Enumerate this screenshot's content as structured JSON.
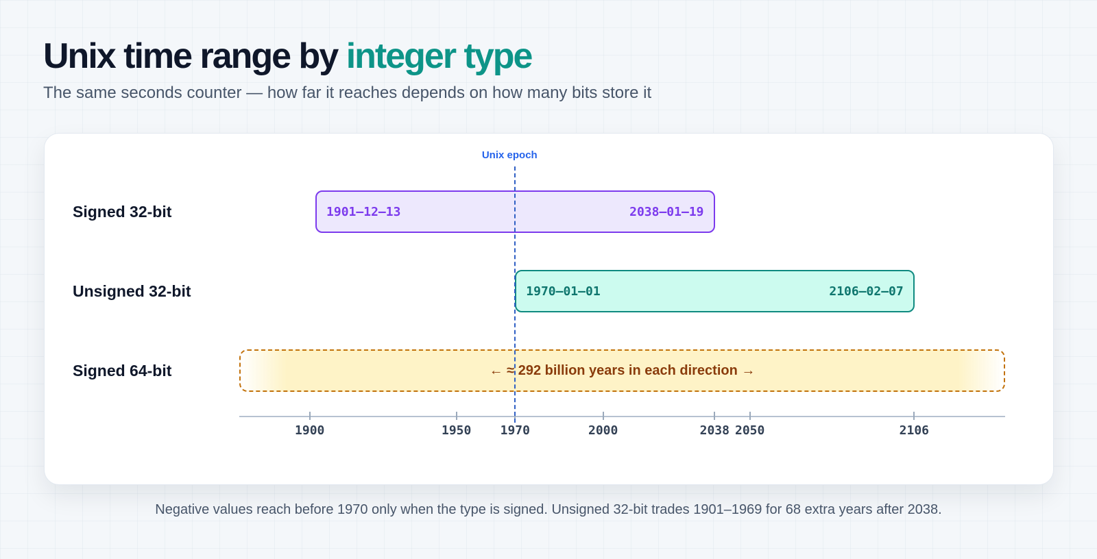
{
  "header": {
    "title_main": "Unix time range by ",
    "title_accent": "integer type",
    "subtitle": "The same seconds counter — how far it reaches depends on how many bits store it"
  },
  "chart_data": {
    "type": "bar",
    "orientation": "horizontal-range",
    "xlim": [
      1876,
      2137
    ],
    "xticks": [
      1900,
      1950,
      1970,
      2000,
      2038,
      2050,
      2106
    ],
    "reference_line": {
      "x": 1970,
      "label": "Unix epoch"
    },
    "rows": [
      {
        "label": "Signed 32-bit",
        "start": 1901.95,
        "end": 2038.05,
        "start_label": "1901–12–13",
        "end_label": "2038–01–19",
        "color": "#7c3aed",
        "fill": "#ede8fd"
      },
      {
        "label": "Unsigned 32-bit",
        "start": 1970.0,
        "end": 2106.1,
        "start_label": "1970–01–01",
        "end_label": "2106–02–07",
        "color": "#0f8a80",
        "fill": "#ccfbef"
      },
      {
        "label": "Signed 64-bit",
        "unbounded": true,
        "note": "← ≈ 292 billion years in each direction →",
        "color": "#c2720b",
        "fill": "#fef3c7"
      }
    ]
  },
  "footnote": "Negative values reach before 1970 only when the type is signed. Unsigned 32-bit trades 1901–1969 for 68 extra years after 2038."
}
